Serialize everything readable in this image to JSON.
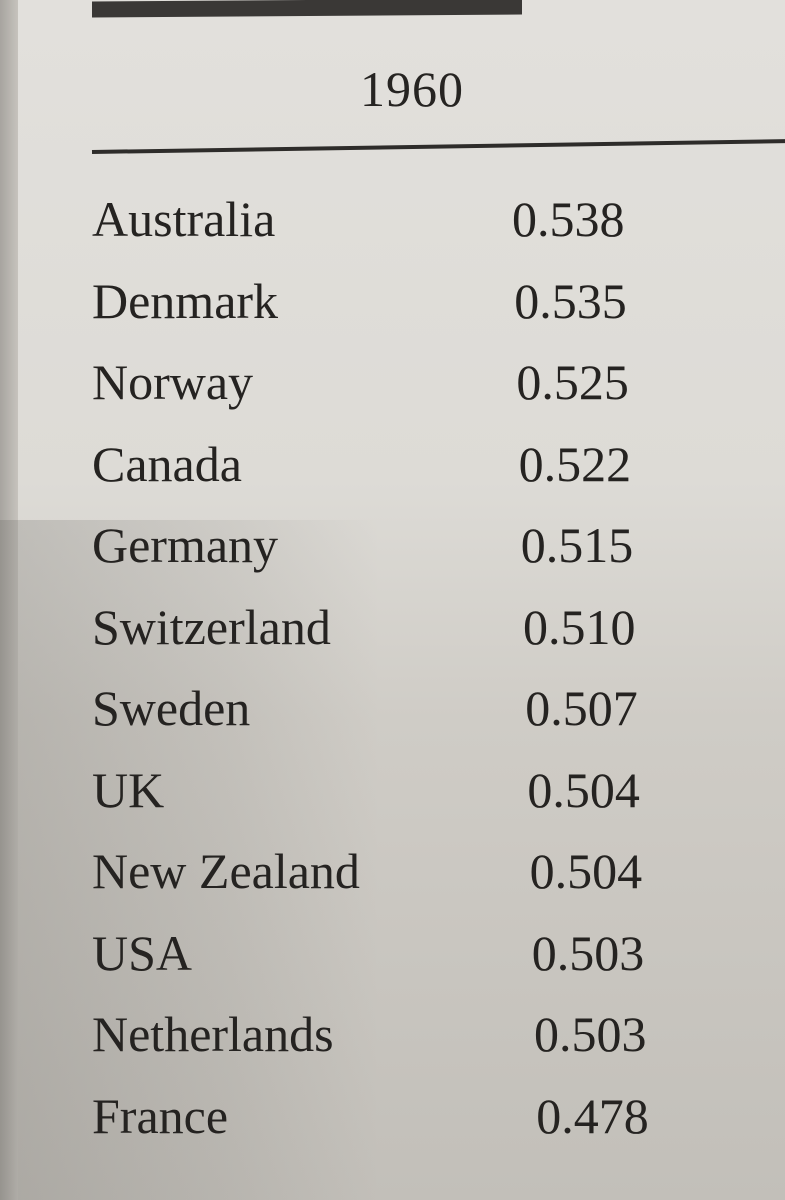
{
  "table": {
    "year_header": "1960",
    "rows": [
      {
        "country": "Australia",
        "value": "0.538"
      },
      {
        "country": "Denmark",
        "value": "0.535"
      },
      {
        "country": "Norway",
        "value": "0.525"
      },
      {
        "country": "Canada",
        "value": "0.522"
      },
      {
        "country": "Germany",
        "value": "0.515"
      },
      {
        "country": "Switzerland",
        "value": "0.510"
      },
      {
        "country": "Sweden",
        "value": "0.507"
      },
      {
        "country": "UK",
        "value": "0.504"
      },
      {
        "country": "New Zealand",
        "value": "0.504"
      },
      {
        "country": "USA",
        "value": "0.503"
      },
      {
        "country": "Netherlands",
        "value": "0.503"
      },
      {
        "country": "France",
        "value": "0.478"
      }
    ]
  }
}
